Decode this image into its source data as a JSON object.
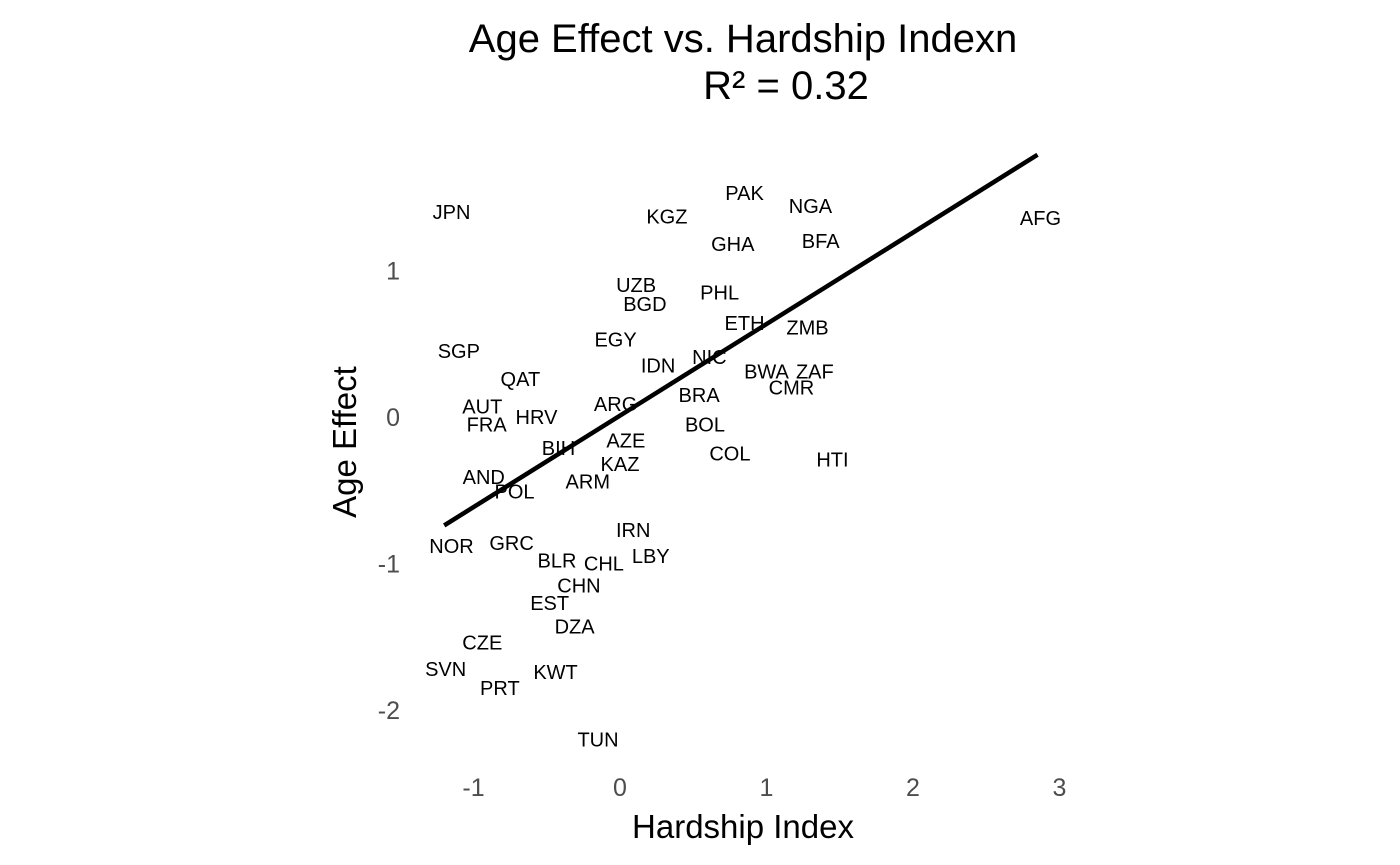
{
  "chart_data": {
    "type": "scatter",
    "title": "Age Effect vs. Hardship Indexn",
    "subtitle": "R² = 0.32",
    "xlabel": "Hardship Index",
    "ylabel": "Age Effect",
    "xlim": [
      -1.35,
      3.05
    ],
    "ylim": [
      -2.3,
      1.85
    ],
    "x_ticks": [
      -1,
      0,
      1,
      2,
      3
    ],
    "y_ticks": [
      -2,
      -1,
      0,
      1
    ],
    "grid": false,
    "legend": "none",
    "trendline": {
      "x": [
        -1.2,
        2.85
      ],
      "y": [
        -0.74,
        1.79
      ],
      "color": "#000000"
    },
    "points": [
      {
        "label": "JPN",
        "x": -1.15,
        "y": 1.4
      },
      {
        "label": "PAK",
        "x": 0.85,
        "y": 1.53
      },
      {
        "label": "NGA",
        "x": 1.3,
        "y": 1.44
      },
      {
        "label": "KGZ",
        "x": 0.32,
        "y": 1.37
      },
      {
        "label": "AFG",
        "x": 2.87,
        "y": 1.36
      },
      {
        "label": "GHA",
        "x": 0.77,
        "y": 1.18
      },
      {
        "label": "BFA",
        "x": 1.37,
        "y": 1.2
      },
      {
        "label": "UZB",
        "x": 0.11,
        "y": 0.9
      },
      {
        "label": "PHL",
        "x": 0.68,
        "y": 0.85
      },
      {
        "label": "BGD",
        "x": 0.17,
        "y": 0.77
      },
      {
        "label": "ETH",
        "x": 0.85,
        "y": 0.64
      },
      {
        "label": "ZMB",
        "x": 1.28,
        "y": 0.61
      },
      {
        "label": "EGY",
        "x": -0.03,
        "y": 0.53
      },
      {
        "label": "SGP",
        "x": -1.1,
        "y": 0.45
      },
      {
        "label": "NIC",
        "x": 0.61,
        "y": 0.41
      },
      {
        "label": "IDN",
        "x": 0.26,
        "y": 0.35
      },
      {
        "label": "BWA",
        "x": 1.0,
        "y": 0.31
      },
      {
        "label": "ZAF",
        "x": 1.33,
        "y": 0.31
      },
      {
        "label": "QAT",
        "x": -0.68,
        "y": 0.26
      },
      {
        "label": "CMR",
        "x": 1.17,
        "y": 0.2
      },
      {
        "label": "BRA",
        "x": 0.54,
        "y": 0.15
      },
      {
        "label": "ARG",
        "x": -0.03,
        "y": 0.09
      },
      {
        "label": "AUT",
        "x": -0.94,
        "y": 0.07
      },
      {
        "label": "HRV",
        "x": -0.57,
        "y": 0.0
      },
      {
        "label": "FRA",
        "x": -0.91,
        "y": -0.05
      },
      {
        "label": "BOL",
        "x": 0.58,
        "y": -0.05
      },
      {
        "label": "AZE",
        "x": 0.04,
        "y": -0.16
      },
      {
        "label": "BIH",
        "x": -0.42,
        "y": -0.21
      },
      {
        "label": "COL",
        "x": 0.75,
        "y": -0.25
      },
      {
        "label": "HTI",
        "x": 1.45,
        "y": -0.29
      },
      {
        "label": "KAZ",
        "x": 0.0,
        "y": -0.32
      },
      {
        "label": "AND",
        "x": -0.93,
        "y": -0.41
      },
      {
        "label": "ARM",
        "x": -0.22,
        "y": -0.44
      },
      {
        "label": "POL",
        "x": -0.72,
        "y": -0.51
      },
      {
        "label": "IRN",
        "x": 0.09,
        "y": -0.77
      },
      {
        "label": "NOR",
        "x": -1.15,
        "y": -0.88
      },
      {
        "label": "GRC",
        "x": -0.74,
        "y": -0.86
      },
      {
        "label": "LBY",
        "x": 0.21,
        "y": -0.95
      },
      {
        "label": "BLR",
        "x": -0.43,
        "y": -0.98
      },
      {
        "label": "CHL",
        "x": -0.11,
        "y": -1.0
      },
      {
        "label": "CHN",
        "x": -0.28,
        "y": -1.15
      },
      {
        "label": "EST",
        "x": -0.48,
        "y": -1.27
      },
      {
        "label": "DZA",
        "x": -0.31,
        "y": -1.43
      },
      {
        "label": "CZE",
        "x": -0.94,
        "y": -1.54
      },
      {
        "label": "SVN",
        "x": -1.19,
        "y": -1.72
      },
      {
        "label": "KWT",
        "x": -0.44,
        "y": -1.74
      },
      {
        "label": "PRT",
        "x": -0.82,
        "y": -1.85
      },
      {
        "label": "TUN",
        "x": -0.15,
        "y": -2.2
      }
    ]
  }
}
